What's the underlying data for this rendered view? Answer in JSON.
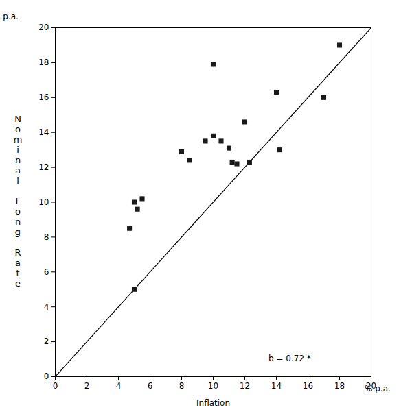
{
  "chart_data": {
    "type": "scatter",
    "x": [
      4.7,
      5.0,
      5.0,
      5.2,
      5.5,
      8.0,
      8.5,
      9.5,
      10.0,
      10.0,
      10.5,
      11.0,
      11.2,
      11.5,
      12.0,
      12.3,
      14.0,
      14.2,
      17.0,
      18.0
    ],
    "values": [
      8.5,
      5.0,
      10.0,
      9.6,
      10.2,
      12.9,
      12.4,
      13.5,
      13.8,
      17.9,
      13.5,
      13.1,
      12.3,
      12.2,
      14.6,
      12.3,
      16.3,
      13.0,
      16.0,
      19.0
    ],
    "color": "#1a1a1a",
    "marker": "square",
    "line": {
      "x": [
        0,
        20
      ],
      "y": [
        0,
        20
      ],
      "color": "black"
    },
    "annotations": [
      {
        "text": "b = 0.72 *",
        "x": 13.5,
        "y": 0.9
      }
    ],
    "xlabel": "Inflation",
    "ylabel": "Nominal Long Rate",
    "x_unit_label": "% p.a.",
    "y_unit_label": "% p.a.",
    "xlim": [
      0,
      20
    ],
    "ylim": [
      0,
      20
    ],
    "xticks": [
      0,
      2,
      4,
      6,
      8,
      10,
      12,
      14,
      16,
      18,
      20
    ],
    "yticks": [
      0,
      2,
      4,
      6,
      8,
      10,
      12,
      14,
      16,
      18,
      20
    ],
    "grid": false
  }
}
